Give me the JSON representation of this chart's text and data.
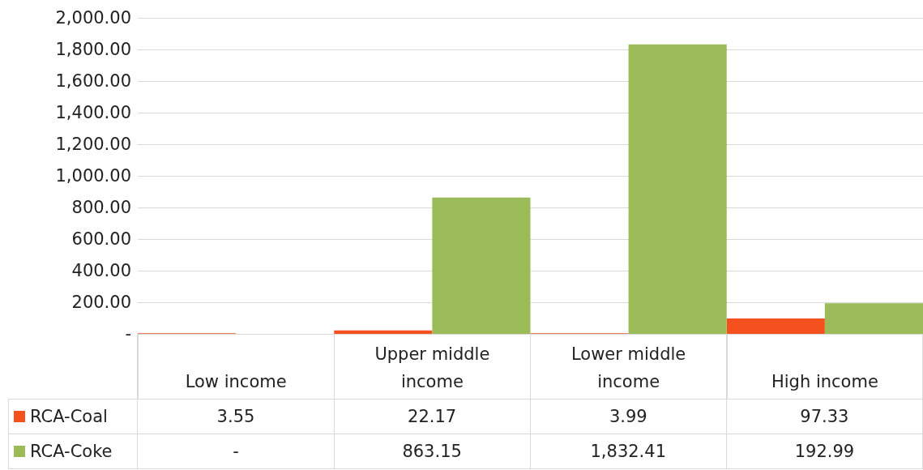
{
  "chart_data": {
    "type": "bar",
    "categories": [
      "Low income",
      "Upper middle\nincome",
      "Lower middle\nincome",
      "High income"
    ],
    "series": [
      {
        "name": "RCA-Coal",
        "color": "#f4511e",
        "values": [
          3.55,
          22.17,
          3.99,
          97.33
        ],
        "value_labels": [
          "3.55",
          "22.17",
          "3.99",
          "97.33"
        ]
      },
      {
        "name": "RCA-Coke",
        "color": "#9bbb59",
        "values": [
          0,
          863.15,
          1832.41,
          192.99
        ],
        "value_labels": [
          "-",
          "863.15",
          "1,832.41",
          "192.99"
        ]
      }
    ],
    "ylim": [
      0,
      2000
    ],
    "yticks": [
      {
        "value": 0,
        "label": "-"
      },
      {
        "value": 200,
        "label": "200.00"
      },
      {
        "value": 400,
        "label": "400.00"
      },
      {
        "value": 600,
        "label": "600.00"
      },
      {
        "value": 800,
        "label": "800.00"
      },
      {
        "value": 1000,
        "label": "1,000.00"
      },
      {
        "value": 1200,
        "label": "1,200.00"
      },
      {
        "value": 1400,
        "label": "1,400.00"
      },
      {
        "value": 1600,
        "label": "1,600.00"
      },
      {
        "value": 1800,
        "label": "1,800.00"
      },
      {
        "value": 2000,
        "label": "2,000.00"
      }
    ],
    "grid": "y",
    "legend": "bottom left"
  }
}
